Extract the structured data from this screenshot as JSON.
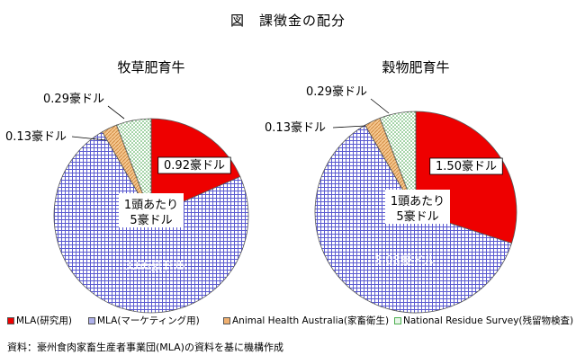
{
  "page": {
    "title": "図　課徴金の配分",
    "source": "資料：豪州食肉家畜生産者事業団(MLA)の資料を基に機構作成"
  },
  "legend": [
    {
      "label": "MLA(研究用)",
      "color": "#ee0000",
      "pattern": "solid"
    },
    {
      "label": "MLA(マーケティング用)",
      "color": "#6f6fd0",
      "pattern": "grid"
    },
    {
      "label": "Animal Health Australia(家畜衛生)",
      "color": "#f0b070",
      "pattern": "hatch"
    },
    {
      "label": "National Residue Survey(残留物検査)",
      "color": "#4caf50",
      "pattern": "dots"
    }
  ],
  "chart_data": [
    {
      "type": "pie",
      "title": "牧草肥育牛",
      "center_label": [
        "1頭あたり",
        "5豪ドル"
      ],
      "categories": [
        "MLA(研究用)",
        "MLA(マーケティング用)",
        "Animal Health Australia(家畜衛生)",
        "National Residue Survey(残留物検査)"
      ],
      "values": [
        0.92,
        3.66,
        0.13,
        0.29
      ],
      "data_labels": [
        "0.92豪ドル",
        "3.66豪ドル",
        "0.13豪ドル",
        "0.29豪ドル"
      ]
    },
    {
      "type": "pie",
      "title": "穀物肥育牛",
      "center_label": [
        "1頭あたり",
        "5豪ドル"
      ],
      "categories": [
        "MLA(研究用)",
        "MLA(マーケティング用)",
        "Animal Health Australia(家畜衛生)",
        "National Residue Survey(残留物検査)"
      ],
      "values": [
        1.5,
        3.08,
        0.13,
        0.29
      ],
      "data_labels": [
        "1.50豪ドル",
        "3.08豪ドル",
        "0.13豪ドル",
        "0.29豪ドル"
      ]
    }
  ]
}
